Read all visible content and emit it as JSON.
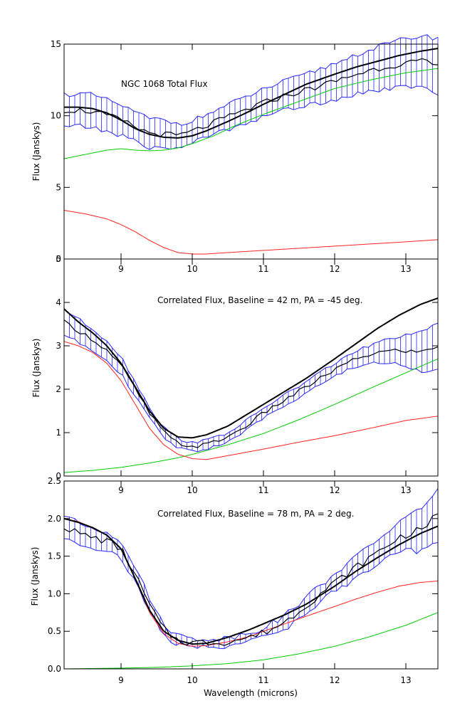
{
  "chart_data": [
    {
      "type": "line",
      "title": "NGC 1068 Total Flux",
      "xlabel": "",
      "ylabel": "Flux (Janskys)",
      "xlim": [
        8.2,
        13.45
      ],
      "ylim": [
        0,
        15
      ],
      "yticks": [
        0,
        5,
        10,
        15
      ],
      "ytick_labels": [
        "0",
        "5",
        "10",
        "15"
      ],
      "xticks": [
        9,
        10,
        11,
        12,
        13
      ],
      "xtick_labels": [
        "9",
        "10",
        "11",
        "12",
        "13"
      ],
      "grid": false,
      "colors": {
        "data": "#000000",
        "error": "#2626ff",
        "model": "#000000",
        "green": "#00cc00",
        "red": "#ff2020"
      },
      "data_amplitude": 0.22,
      "error_bars": {
        "x": [
          8.2,
          8.6,
          9.0,
          9.4,
          9.6,
          9.8,
          10.0,
          10.5,
          11.0,
          11.5,
          12.0,
          12.5,
          13.0,
          13.45
        ],
        "halfwidth": [
          1.1,
          1.15,
          1.05,
          1.0,
          1.0,
          0.85,
          0.75,
          0.85,
          0.95,
          1.05,
          1.25,
          1.45,
          1.7,
          1.9
        ]
      },
      "series": [
        {
          "role": "data",
          "x": [
            8.2,
            8.4,
            8.6,
            8.8,
            9.0,
            9.2,
            9.4,
            9.6,
            9.8,
            10.0,
            10.2,
            10.5,
            10.8,
            11.0,
            11.3,
            11.6,
            12.0,
            12.3,
            12.6,
            12.9,
            13.2,
            13.45
          ],
          "y": [
            10.4,
            10.4,
            10.3,
            10.0,
            9.7,
            9.2,
            8.8,
            8.7,
            8.6,
            8.9,
            9.3,
            9.9,
            10.5,
            10.9,
            11.4,
            11.8,
            12.4,
            12.9,
            13.3,
            13.6,
            13.8,
            13.5
          ]
        },
        {
          "role": "model",
          "x": [
            8.2,
            8.4,
            8.6,
            8.8,
            9.0,
            9.2,
            9.4,
            9.6,
            9.8,
            10.0,
            10.2,
            10.5,
            10.8,
            11.0,
            11.3,
            11.6,
            12.0,
            12.3,
            12.6,
            12.9,
            13.2,
            13.45
          ],
          "y": [
            10.6,
            10.6,
            10.5,
            10.2,
            9.7,
            9.1,
            8.7,
            8.5,
            8.45,
            8.6,
            8.95,
            9.6,
            10.3,
            10.8,
            11.5,
            12.2,
            12.9,
            13.4,
            13.8,
            14.2,
            14.5,
            14.7
          ]
        },
        {
          "role": "green",
          "x": [
            8.2,
            8.5,
            8.8,
            9.0,
            9.2,
            9.4,
            9.6,
            9.8,
            10.0,
            10.3,
            10.6,
            11.0,
            11.5,
            12.0,
            12.5,
            13.0,
            13.45
          ],
          "y": [
            7.0,
            7.3,
            7.6,
            7.7,
            7.6,
            7.55,
            7.6,
            7.75,
            8.05,
            8.6,
            9.3,
            10.1,
            11.0,
            11.9,
            12.5,
            13.0,
            13.3
          ]
        },
        {
          "role": "red",
          "x": [
            8.2,
            8.5,
            8.8,
            9.0,
            9.2,
            9.4,
            9.6,
            9.8,
            10.0,
            10.2,
            10.5,
            11.0,
            11.5,
            12.0,
            12.5,
            13.0,
            13.45
          ],
          "y": [
            3.4,
            3.15,
            2.8,
            2.4,
            1.9,
            1.3,
            0.8,
            0.45,
            0.35,
            0.35,
            0.45,
            0.6,
            0.75,
            0.9,
            1.05,
            1.2,
            1.35
          ]
        }
      ]
    },
    {
      "type": "line",
      "title": "Correlated Flux, Baseline = 42 m, PA = -45 deg.",
      "xlabel": "",
      "ylabel": "Flux (Janskys)",
      "xlim": [
        8.2,
        13.45
      ],
      "ylim": [
        0,
        5
      ],
      "yticks": [
        0,
        1,
        2,
        3,
        4,
        5
      ],
      "ytick_labels": [
        "0",
        "1",
        "2",
        "3",
        "4",
        "5"
      ],
      "xticks": [
        9,
        10,
        11,
        12,
        13
      ],
      "xtick_labels": [
        "9",
        "10",
        "11",
        "12",
        "13"
      ],
      "grid": false,
      "colors": {
        "data": "#000000",
        "error": "#2626ff",
        "model": "#000000",
        "green": "#00cc00",
        "red": "#ff2020"
      },
      "data_amplitude": 0.05,
      "error_bars": {
        "x": [
          8.2,
          8.5,
          9.0,
          9.5,
          10.0,
          10.5,
          11.0,
          11.5,
          12.0,
          12.5,
          13.0,
          13.45
        ],
        "halfwidth": [
          0.3,
          0.25,
          0.2,
          0.12,
          0.1,
          0.1,
          0.12,
          0.12,
          0.15,
          0.2,
          0.35,
          0.55
        ]
      },
      "series": [
        {
          "role": "data",
          "x": [
            8.2,
            8.4,
            8.6,
            8.8,
            9.0,
            9.2,
            9.4,
            9.6,
            9.8,
            10.0,
            10.2,
            10.5,
            10.8,
            11.0,
            11.3,
            11.6,
            12.0,
            12.3,
            12.6,
            12.9,
            13.2,
            13.45
          ],
          "y": [
            3.55,
            3.35,
            3.15,
            2.9,
            2.55,
            2.0,
            1.45,
            1.0,
            0.75,
            0.68,
            0.72,
            0.9,
            1.2,
            1.45,
            1.75,
            2.05,
            2.45,
            2.7,
            2.85,
            2.9,
            2.85,
            3.0
          ]
        },
        {
          "role": "model",
          "x": [
            8.2,
            8.4,
            8.6,
            8.8,
            9.0,
            9.2,
            9.4,
            9.6,
            9.8,
            10.0,
            10.2,
            10.5,
            10.8,
            11.0,
            11.3,
            11.6,
            12.0,
            12.3,
            12.6,
            12.9,
            13.2,
            13.45
          ],
          "y": [
            3.85,
            3.55,
            3.3,
            3.0,
            2.6,
            2.05,
            1.5,
            1.1,
            0.9,
            0.88,
            0.95,
            1.15,
            1.45,
            1.65,
            1.95,
            2.25,
            2.7,
            3.05,
            3.4,
            3.7,
            3.95,
            4.1
          ]
        },
        {
          "role": "green",
          "x": [
            8.2,
            8.6,
            9.0,
            9.4,
            9.8,
            10.0,
            10.5,
            11.0,
            11.5,
            12.0,
            12.5,
            13.0,
            13.45
          ],
          "y": [
            0.08,
            0.13,
            0.2,
            0.3,
            0.42,
            0.5,
            0.72,
            0.98,
            1.3,
            1.65,
            2.02,
            2.38,
            2.7
          ]
        },
        {
          "role": "red",
          "x": [
            8.2,
            8.4,
            8.6,
            8.8,
            9.0,
            9.2,
            9.4,
            9.6,
            9.8,
            10.0,
            10.2,
            10.5,
            11.0,
            11.5,
            12.0,
            12.5,
            13.0,
            13.45
          ],
          "y": [
            3.1,
            3.0,
            2.85,
            2.6,
            2.2,
            1.65,
            1.1,
            0.72,
            0.5,
            0.4,
            0.38,
            0.47,
            0.62,
            0.78,
            0.93,
            1.1,
            1.28,
            1.38
          ]
        }
      ]
    },
    {
      "type": "line",
      "title": "Correlated Flux, Baseline = 78 m, PA = 2 deg.",
      "xlabel": "Wavelength (microns)",
      "ylabel": "Flux (Janskys)",
      "xlim": [
        8.2,
        13.45
      ],
      "ylim": [
        0,
        2.5
      ],
      "yticks": [
        0,
        0.5,
        1.0,
        1.5,
        2.0,
        2.5
      ],
      "ytick_labels": [
        "0.0",
        "0.5",
        "1.0",
        "1.5",
        "2.0",
        "2.5"
      ],
      "xticks": [
        9,
        10,
        11,
        12,
        13
      ],
      "xtick_labels": [
        "9",
        "10",
        "11",
        "12",
        "13"
      ],
      "grid": false,
      "colors": {
        "data": "#000000",
        "error": "#2626ff",
        "model": "#000000",
        "green": "#00cc00",
        "red": "#ff2020"
      },
      "data_amplitude": 0.05,
      "error_bars": {
        "x": [
          8.2,
          8.5,
          9.0,
          9.5,
          10.0,
          10.5,
          11.0,
          11.5,
          12.0,
          12.5,
          13.0,
          13.45
        ],
        "halfwidth": [
          0.15,
          0.13,
          0.12,
          0.08,
          0.05,
          0.05,
          0.07,
          0.1,
          0.12,
          0.15,
          0.22,
          0.35
        ]
      },
      "series": [
        {
          "role": "data",
          "x": [
            8.2,
            8.4,
            8.6,
            8.8,
            9.0,
            9.2,
            9.4,
            9.6,
            9.8,
            10.0,
            10.2,
            10.5,
            10.8,
            11.0,
            11.3,
            11.6,
            12.0,
            12.3,
            12.6,
            12.9,
            13.2,
            13.45
          ],
          "y": [
            1.9,
            1.8,
            1.75,
            1.7,
            1.6,
            1.25,
            0.85,
            0.52,
            0.38,
            0.35,
            0.35,
            0.36,
            0.42,
            0.48,
            0.62,
            0.85,
            1.15,
            1.35,
            1.55,
            1.75,
            1.85,
            2.05
          ]
        },
        {
          "role": "model",
          "x": [
            8.2,
            8.4,
            8.6,
            8.8,
            9.0,
            9.2,
            9.4,
            9.6,
            9.8,
            10.0,
            10.2,
            10.5,
            10.8,
            11.0,
            11.3,
            11.6,
            12.0,
            12.3,
            12.6,
            12.9,
            13.2,
            13.45
          ],
          "y": [
            2.0,
            1.95,
            1.88,
            1.78,
            1.6,
            1.2,
            0.78,
            0.5,
            0.38,
            0.33,
            0.34,
            0.42,
            0.52,
            0.6,
            0.72,
            0.86,
            1.1,
            1.3,
            1.48,
            1.65,
            1.8,
            1.9
          ]
        },
        {
          "role": "green",
          "x": [
            8.2,
            8.6,
            9.0,
            9.5,
            10.0,
            10.5,
            11.0,
            11.5,
            12.0,
            12.5,
            13.0,
            13.45
          ],
          "y": [
            0.0,
            0.005,
            0.01,
            0.02,
            0.04,
            0.07,
            0.12,
            0.2,
            0.3,
            0.43,
            0.58,
            0.75
          ]
        },
        {
          "role": "red",
          "x": [
            8.2,
            8.4,
            8.6,
            8.8,
            9.0,
            9.2,
            9.4,
            9.6,
            9.8,
            10.0,
            10.2,
            10.5,
            10.8,
            11.0,
            11.3,
            11.6,
            12.0,
            12.3,
            12.6,
            12.9,
            13.2,
            13.45
          ],
          "y": [
            2.0,
            1.96,
            1.88,
            1.78,
            1.6,
            1.2,
            0.75,
            0.47,
            0.34,
            0.3,
            0.31,
            0.36,
            0.43,
            0.5,
            0.6,
            0.7,
            0.83,
            0.93,
            1.02,
            1.1,
            1.15,
            1.17
          ]
        }
      ]
    }
  ]
}
